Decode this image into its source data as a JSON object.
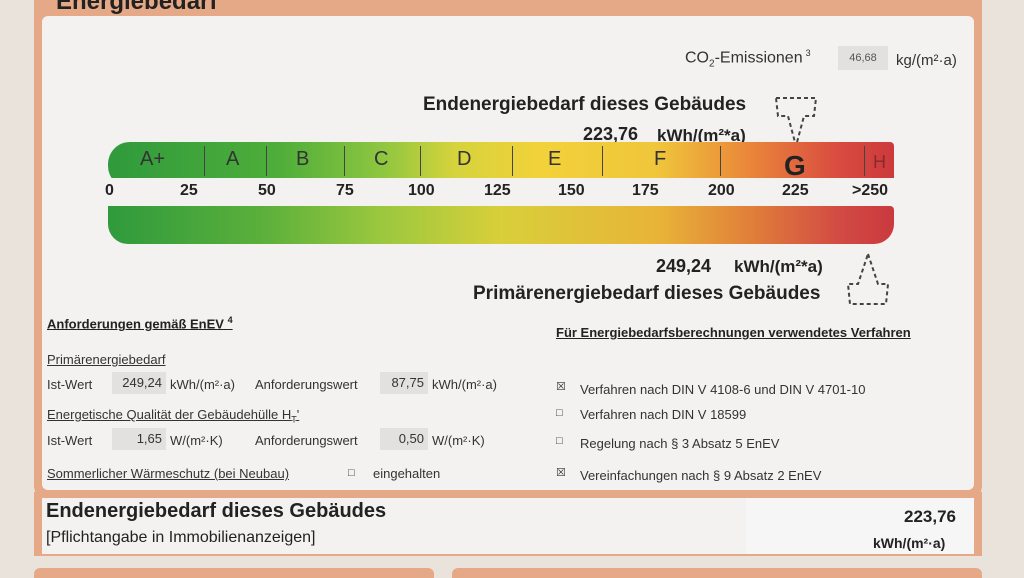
{
  "header": {
    "title": "Energiebedarf"
  },
  "co2": {
    "label": "CO",
    "sub": "2",
    "rest": "-Emissionen",
    "sup": "3",
    "value": "46,68",
    "unit": "kg/(m²·a)"
  },
  "endenergie": {
    "title": "Endenergiebedarf dieses Gebäudes",
    "value": "223,76",
    "unit": "kWh/(m²*a)"
  },
  "scale": {
    "classes": [
      "A+",
      "A",
      "B",
      "C",
      "D",
      "E",
      "F",
      "G",
      "H"
    ],
    "ticks": [
      "0",
      "25",
      "50",
      "75",
      "100",
      "125",
      "150",
      "175",
      "200",
      "225",
      ">250"
    ]
  },
  "primaer": {
    "title": "Primärenergiebedarf dieses Gebäudes",
    "value": "249,24",
    "unit": "kWh/(m²*a)"
  },
  "requirements": {
    "heading": "Anforderungen gemäß EnEV",
    "heading_sup": "4",
    "primary_section": "Primärenergiebedarf",
    "ist_label": "Ist-Wert",
    "ist_value": "249,24",
    "ist_unit": "kWh/(m²·a)",
    "anf_label": "Anforderungswert",
    "anf_value": "87,75",
    "anf_unit": "kWh/(m²·a)",
    "quality_section": "Energetische Qualität der Gebäudehülle H",
    "quality_sub": "T",
    "quality_tail": "'",
    "ist2_label": "Ist-Wert",
    "ist2_value": "1,65",
    "ist2_unit": "W/(m²·K)",
    "anf2_label": "Anforderungswert",
    "anf2_value": "0,50",
    "anf2_unit": "W/(m²·K)",
    "summer_label": "Sommerlicher Wärmeschutz (bei Neubau)",
    "summer_check": "□",
    "summer_value": "eingehalten"
  },
  "methods": {
    "heading": "Für Energiebedarfsberechnungen verwendetes Verfahren",
    "items": [
      {
        "check": "☒",
        "label": "Verfahren nach DIN V 4108-6 und DIN V 4701-10"
      },
      {
        "check": "□",
        "label": "Verfahren nach DIN V 18599"
      },
      {
        "check": "□",
        "label": "Regelung nach § 3 Absatz 5 EnEV"
      },
      {
        "check": "☒",
        "label": "Vereinfachungen nach § 9 Absatz 2 EnEV"
      }
    ]
  },
  "footer": {
    "title": "Endenergiebedarf dieses Gebäudes",
    "subtitle": "[Pflichtangabe in Immobilienanzeigen]",
    "value": "223,76",
    "unit": "kWh/(m²·a)"
  }
}
